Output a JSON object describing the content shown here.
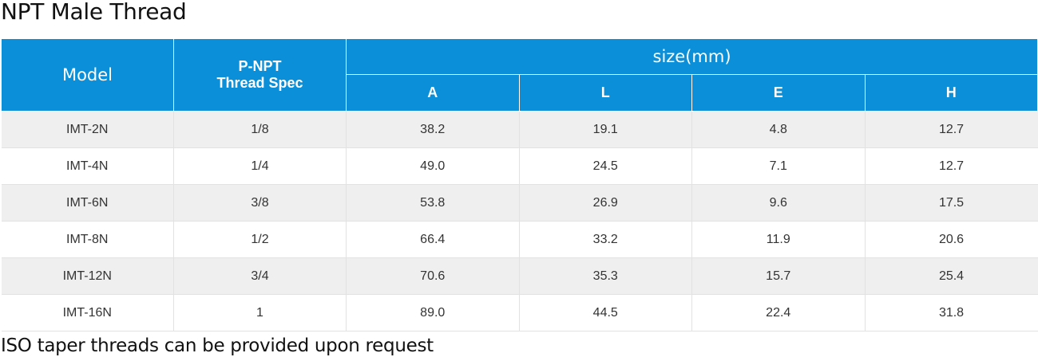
{
  "title": "NPT Male Thread",
  "table": {
    "headers": {
      "model": "Model",
      "thread_line1": "P-NPT",
      "thread_line2": "Thread Spec",
      "size_group": "size(mm)",
      "dims": [
        "A",
        "L",
        "E",
        "H"
      ]
    },
    "rows": [
      [
        "IMT-2N",
        "1/8",
        "38.2",
        "19.1",
        "4.8",
        "12.7"
      ],
      [
        "IMT-4N",
        "1/4",
        "49.0",
        "24.5",
        "7.1",
        "12.7"
      ],
      [
        "IMT-6N",
        "3/8",
        "53.8",
        "26.9",
        "9.6",
        "17.5"
      ],
      [
        "IMT-8N",
        "1/2",
        "66.4",
        "33.2",
        "11.9",
        "20.6"
      ],
      [
        "IMT-12N",
        "3/4",
        "70.6",
        "35.3",
        "15.7",
        "25.4"
      ],
      [
        "IMT-16N",
        "1",
        "89.0",
        "44.5",
        "22.4",
        "31.8"
      ]
    ]
  },
  "note": "ISO taper threads can be provided upon request",
  "colors": {
    "header_bg": "#0b8fd8",
    "row_alt_bg": "#efefef"
  }
}
